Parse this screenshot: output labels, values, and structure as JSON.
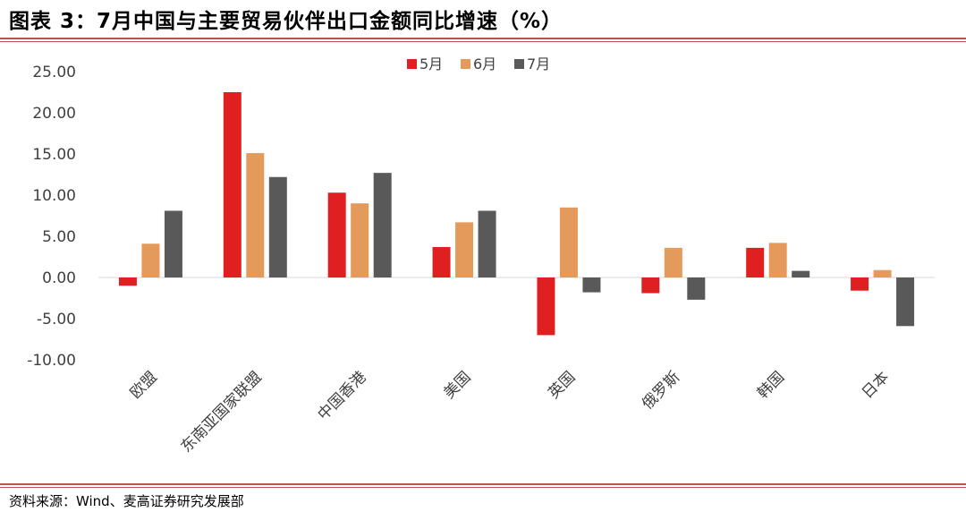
{
  "header": {
    "title": "图表 3：7月中国与主要贸易伙伴出口金额同比增速（%）"
  },
  "footer": {
    "source": "资料来源：Wind、麦高证券研究发展部"
  },
  "colors": {
    "accent_rule": "#c0504d"
  },
  "chart_data": {
    "type": "bar",
    "title": "7月中国与主要贸易伙伴出口金额同比增速（%）",
    "xlabel": "",
    "ylabel": "",
    "ylim": [
      -10,
      25
    ],
    "yticks": [
      25,
      20,
      15,
      10,
      5,
      0,
      -5,
      -10
    ],
    "ytick_labels": [
      "25.00",
      "20.00",
      "15.00",
      "10.00",
      "5.00",
      "0.00",
      "-5.00",
      "-10.00"
    ],
    "categories": [
      "欧盟",
      "东南亚国家联盟",
      "中国香港",
      "美国",
      "英国",
      "俄罗斯",
      "韩国",
      "日本"
    ],
    "series": [
      {
        "name": "5月",
        "color": "#e02020",
        "values": [
          -1.0,
          22.5,
          10.3,
          3.7,
          -7.0,
          -1.9,
          3.6,
          -1.6
        ]
      },
      {
        "name": "6月",
        "color": "#e49a5a",
        "values": [
          4.1,
          15.1,
          9.0,
          6.7,
          8.5,
          3.6,
          4.2,
          0.9
        ]
      },
      {
        "name": "7月",
        "color": "#595959",
        "values": [
          8.1,
          12.2,
          12.7,
          8.1,
          -1.8,
          -2.7,
          0.8,
          -5.9
        ]
      }
    ],
    "legend": "top-center",
    "grid": false
  }
}
